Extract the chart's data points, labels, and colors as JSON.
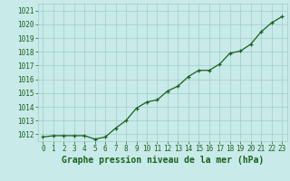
{
  "x": [
    0,
    1,
    2,
    3,
    4,
    5,
    6,
    7,
    8,
    9,
    10,
    11,
    12,
    13,
    14,
    15,
    16,
    17,
    18,
    19,
    20,
    21,
    22,
    23
  ],
  "y": [
    1011.8,
    1011.9,
    1011.9,
    1011.9,
    1011.9,
    1011.65,
    1011.8,
    1012.45,
    1013.0,
    1013.9,
    1014.35,
    1014.5,
    1015.15,
    1015.5,
    1016.2,
    1016.65,
    1016.65,
    1017.1,
    1017.9,
    1018.05,
    1018.55,
    1019.45,
    1020.1,
    1020.55
  ],
  "line_color": "#1a6020",
  "marker": "+",
  "marker_color": "#1a6020",
  "bg_color": "#c8eae8",
  "grid_color": "#a0ccc8",
  "title": "Graphe pression niveau de la mer (hPa)",
  "title_color": "#1a6020",
  "ylim_min": 1011.5,
  "ylim_max": 1021.5,
  "yticks": [
    1012,
    1013,
    1014,
    1015,
    1016,
    1017,
    1018,
    1019,
    1020,
    1021
  ],
  "xticks": [
    0,
    1,
    2,
    3,
    4,
    5,
    6,
    7,
    8,
    9,
    10,
    11,
    12,
    13,
    14,
    15,
    16,
    17,
    18,
    19,
    20,
    21,
    22,
    23
  ],
  "tick_color": "#1a6020",
  "tick_fontsize": 5.5,
  "title_fontsize": 7.0,
  "linewidth": 0.9,
  "markersize": 3.5
}
